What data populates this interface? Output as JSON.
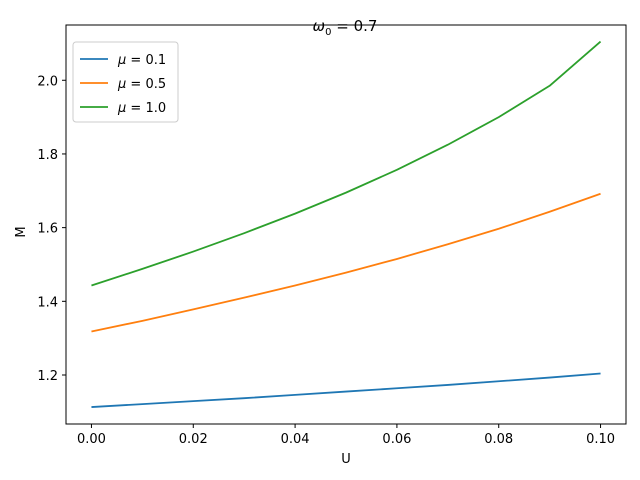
{
  "chart_data": {
    "type": "line",
    "title_main": "ω",
    "title_sub": "0",
    "title_rest": " = 0.7",
    "xlabel": "U",
    "ylabel": "M",
    "xlim": [
      -0.005,
      0.105
    ],
    "ylim": [
      1.067,
      2.15
    ],
    "xticks": [
      0.0,
      0.02,
      0.04,
      0.06,
      0.08,
      0.1
    ],
    "xtick_labels": [
      "0.00",
      "0.02",
      "0.04",
      "0.06",
      "0.08",
      "0.10"
    ],
    "yticks": [
      1.2,
      1.4,
      1.6,
      1.8,
      2.0
    ],
    "ytick_labels": [
      "1.2",
      "1.4",
      "1.6",
      "1.8",
      "2.0"
    ],
    "legend_position": "upper-left",
    "x": [
      0.0,
      0.01,
      0.02,
      0.03,
      0.04,
      0.05,
      0.06,
      0.07,
      0.08,
      0.09,
      0.1
    ],
    "series": [
      {
        "name_prefix": "μ",
        "name_value": " = 0.1",
        "color": "#1f77b4",
        "values": [
          1.113,
          1.121,
          1.129,
          1.137,
          1.146,
          1.155,
          1.164,
          1.173,
          1.183,
          1.193,
          1.204
        ]
      },
      {
        "name_prefix": "μ",
        "name_value": " = 0.5",
        "color": "#ff7f0e",
        "values": [
          1.318,
          1.347,
          1.378,
          1.41,
          1.443,
          1.478,
          1.515,
          1.555,
          1.597,
          1.643,
          1.692
        ]
      },
      {
        "name_prefix": "μ",
        "name_value": " = 1.0",
        "color": "#2ca02c",
        "values": [
          1.443,
          1.488,
          1.535,
          1.585,
          1.638,
          1.695,
          1.757,
          1.825,
          1.9,
          1.985,
          2.105
        ]
      }
    ]
  }
}
